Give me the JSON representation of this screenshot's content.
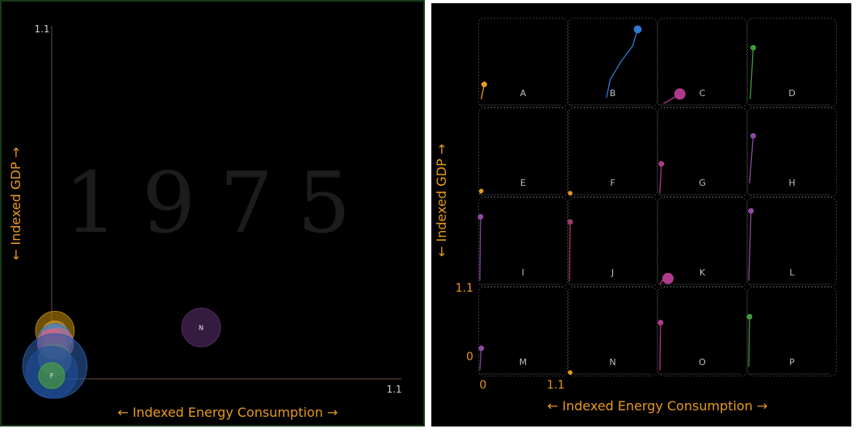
{
  "colors": {
    "background": "#000000",
    "axis_label": "#e89a1c",
    "axis_line": "#6a4d38",
    "cell_border": "#4a4a4a",
    "cell_label": "#bdbdbd",
    "tick_label": "#cfcfcf",
    "year_watermark": "#1c1c1c"
  },
  "chart_data": [
    {
      "type": "scatter",
      "variant": "bubble",
      "year_label": "1975",
      "xlabel": "← Indexed Energy Consumption →",
      "ylabel": "← Indexed GDP →",
      "xlim": [
        0,
        1.1
      ],
      "ylim": [
        0,
        1.1
      ],
      "x_tick_labels": [
        "1.1"
      ],
      "y_tick_labels": [
        "1.1"
      ],
      "bubbles": [
        {
          "label": "",
          "x": 0.01,
          "y": 0.15,
          "size": 3.0,
          "color": "#b8860b"
        },
        {
          "label": "",
          "x": 0.01,
          "y": 0.14,
          "size": 2.0,
          "color": "#d4a017"
        },
        {
          "label": "",
          "x": 0.01,
          "y": 0.13,
          "size": 1.8,
          "color": "#5f9ea0"
        },
        {
          "label": "",
          "x": 0.01,
          "y": 0.12,
          "size": 2.6,
          "color": "#3a7bd5"
        },
        {
          "label": "",
          "x": 0.02,
          "y": 0.11,
          "size": 2.4,
          "color": "#c36a8a"
        },
        {
          "label": "",
          "x": 0.0,
          "y": 0.11,
          "size": 2.2,
          "color": "#e05f7f"
        },
        {
          "label": "",
          "x": 0.01,
          "y": 0.06,
          "size": 2.5,
          "color": "#a0a050"
        },
        {
          "label": "",
          "x": 0.01,
          "y": 0.04,
          "size": 5.0,
          "color": "#2a5aa0"
        },
        {
          "label": "",
          "x": 0.0,
          "y": 0.02,
          "size": 4.0,
          "color": "#1f4f9a"
        },
        {
          "label": "F",
          "x": 0.0,
          "y": 0.01,
          "size": 2.0,
          "color": "#4ea836"
        },
        {
          "label": "N",
          "x": 0.47,
          "y": 0.16,
          "size": 3.0,
          "color": "#5a2d6a"
        }
      ]
    },
    {
      "type": "line",
      "variant": "small-multiples",
      "xlabel": "← Indexed Energy Consumption →",
      "ylabel": "← Indexed GDP →",
      "xlim": [
        0,
        1.1
      ],
      "ylim": [
        0,
        1.1
      ],
      "x_tick_labels": [
        "0",
        "1.1"
      ],
      "y_tick_labels": [
        "0",
        "1.1"
      ],
      "panels": [
        {
          "label": "A",
          "color": "#e89a1c",
          "size": 1.0,
          "points": [
            [
              0.02,
              0.08
            ],
            [
              0.06,
              0.28
            ]
          ]
        },
        {
          "label": "B",
          "color": "#2e7bd6",
          "size": 1.4,
          "points": [
            [
              0.5,
              0.1
            ],
            [
              0.55,
              0.35
            ],
            [
              0.7,
              0.6
            ],
            [
              0.85,
              0.8
            ],
            [
              0.92,
              1.03
            ]
          ]
        },
        {
          "label": "C",
          "color": "#b03a8a",
          "size": 2.0,
          "points": [
            [
              0.06,
              0.02
            ],
            [
              0.2,
              0.1
            ],
            [
              0.28,
              0.15
            ]
          ]
        },
        {
          "label": "D",
          "color": "#3f9a3a",
          "size": 1.0,
          "points": [
            [
              0.02,
              0.08
            ],
            [
              0.06,
              0.78
            ]
          ]
        },
        {
          "label": "E",
          "color": "#e89a1c",
          "size": 0.8,
          "points": [
            [
              0.0,
              0.01
            ],
            [
              0.02,
              0.05
            ]
          ]
        },
        {
          "label": "F",
          "color": "#e89a1c",
          "size": 0.8,
          "points": [
            [
              0.0,
              0.0
            ],
            [
              0.01,
              0.02
            ]
          ]
        },
        {
          "label": "G",
          "color": "#b03a8a",
          "size": 1.0,
          "points": [
            [
              0.01,
              0.02
            ],
            [
              0.03,
              0.42
            ]
          ]
        },
        {
          "label": "H",
          "color": "#8b4aa0",
          "size": 1.0,
          "points": [
            [
              0.01,
              0.15
            ],
            [
              0.06,
              0.8
            ]
          ]
        },
        {
          "label": "I",
          "color": "#8b4aa0",
          "size": 1.0,
          "points": [
            [
              0.0,
              0.05
            ],
            [
              0.01,
              0.92
            ]
          ]
        },
        {
          "label": "J",
          "color": "#9a3a6a",
          "size": 1.0,
          "points": [
            [
              0.0,
              0.04
            ],
            [
              0.01,
              0.85
            ]
          ]
        },
        {
          "label": "K",
          "color": "#b03a8a",
          "size": 2.0,
          "points": [
            [
              0.01,
              0.0
            ],
            [
              0.06,
              0.08
            ],
            [
              0.12,
              0.08
            ]
          ]
        },
        {
          "label": "L",
          "color": "#8b4aa0",
          "size": 1.0,
          "points": [
            [
              0.0,
              0.05
            ],
            [
              0.03,
              1.0
            ]
          ]
        },
        {
          "label": "M",
          "color": "#8b4aa0",
          "size": 1.0,
          "points": [
            [
              0.0,
              0.05
            ],
            [
              0.02,
              0.35
            ]
          ]
        },
        {
          "label": "N",
          "color": "#e89a1c",
          "size": 0.8,
          "points": [
            [
              0.0,
              0.0
            ],
            [
              0.01,
              0.02
            ]
          ]
        },
        {
          "label": "O",
          "color": "#b03a8a",
          "size": 1.0,
          "points": [
            [
              0.01,
              0.05
            ],
            [
              0.02,
              0.7
            ]
          ]
        },
        {
          "label": "P",
          "color": "#3f9a3a",
          "size": 1.0,
          "points": [
            [
              0.0,
              0.1
            ],
            [
              0.01,
              0.78
            ]
          ]
        }
      ]
    }
  ]
}
